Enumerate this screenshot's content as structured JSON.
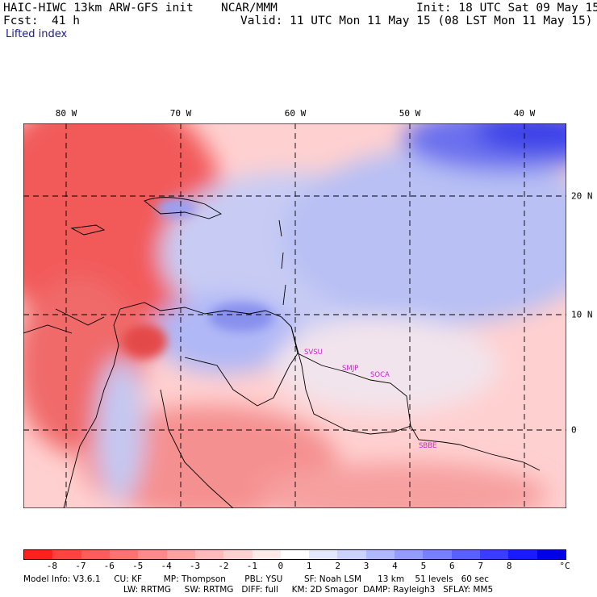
{
  "header": {
    "model": "HAIC-HIWC 13km ARW-GFS init",
    "org": "NCAR/MMM",
    "init": "Init: 18 UTC Sat 09 May 15",
    "fcst_label": "Fcst:",
    "fcst_value": "41 h",
    "valid": "Valid: 11 UTC Mon 11 May 15 (08 LST Mon 11 May 15)",
    "field": "Lifted index"
  },
  "map": {
    "lon_labels": [
      "80 W",
      "70 W",
      "60 W",
      "50 W",
      "40 W"
    ],
    "lat_labels": [
      "20 N",
      "10 N",
      "0"
    ],
    "stations": [
      "SVSU",
      "SMJP",
      "SOCA",
      "SBBE"
    ]
  },
  "colorbar": {
    "ticks": [
      "-8",
      "-7",
      "-6",
      "-5",
      "-4",
      "-3",
      "-2",
      "-1",
      "0",
      "1",
      "2",
      "3",
      "4",
      "5",
      "6",
      "7",
      "8"
    ],
    "unit": "°C",
    "colors": [
      "#ff2020",
      "#ff4242",
      "#ff5c5c",
      "#ff7272",
      "#ff8a8a",
      "#ffa2a2",
      "#ffbaba",
      "#ffd2d2",
      "#ffeaea",
      "#ffffff",
      "#e4e8ff",
      "#ccd2ff",
      "#b0b8ff",
      "#949cff",
      "#7880ff",
      "#5a60ff",
      "#3a3cff",
      "#1a1aff",
      "#0000e8"
    ]
  },
  "model_info": {
    "line1": "Model Info: V3.6.1     CU: KF        MP: Thompson       PBL: YSU        SF: Noah LSM      13 km    51 levels   60 sec",
    "line2": "LW: RRTMG     SW: RRTMG   DIFF: full     KM: 2D Smagor  DAMP: Rayleigh3   SFLAY: MM5"
  }
}
